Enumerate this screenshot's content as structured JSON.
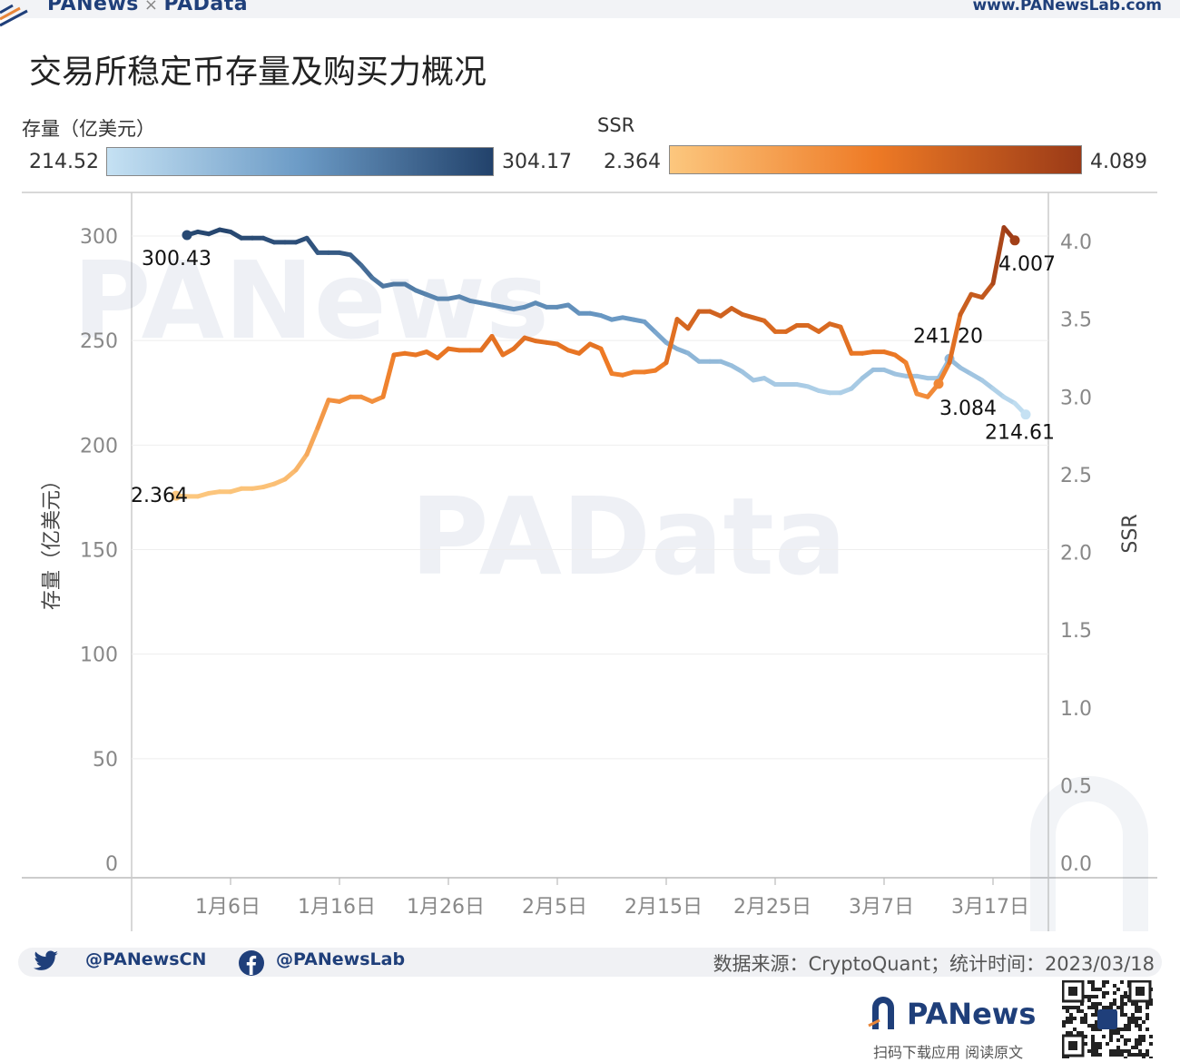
{
  "header": {
    "brand": "PANews",
    "brand_sep": "×",
    "brand2": "PAData",
    "url": "www.PANewsLab.com"
  },
  "title": "交易所稳定币存量及购买力概况",
  "legend": {
    "stock": {
      "title": "存量（亿美元）",
      "min": "214.52",
      "max": "304.17",
      "color_from": "#c5e1f3",
      "color_to": "#22426b"
    },
    "ssr": {
      "title": "SSR",
      "min": "2.364",
      "max": "4.089",
      "color_from": "#fcc77e",
      "color_to": "#9a3a17"
    }
  },
  "chart_data": {
    "type": "line",
    "x_ticks": [
      "1月6日",
      "1月16日",
      "1月26日",
      "2月5日",
      "2月15日",
      "2月25日",
      "3月7日",
      "3月17日"
    ],
    "y_left": {
      "label": "存量（亿美元）",
      "lim": [
        0,
        300
      ],
      "ticks": [
        "0",
        "50",
        "100",
        "150",
        "200",
        "250",
        "300"
      ]
    },
    "y_right": {
      "label": "SSR",
      "lim": [
        0,
        4.0
      ],
      "ticks": [
        "0.0",
        "0.5",
        "1.0",
        "1.5",
        "2.0",
        "2.5",
        "3.0",
        "3.5",
        "4.0"
      ]
    },
    "grid": true,
    "series": [
      {
        "axis": "left",
        "start_date": "1月2日",
        "values": [
          300.43,
          302,
          301,
          303,
          302,
          299,
          299,
          299,
          297,
          297,
          297,
          299,
          292,
          292,
          292,
          291,
          286,
          280,
          276,
          277,
          277,
          274,
          272,
          270,
          270,
          271,
          269,
          268,
          267,
          266,
          265,
          266,
          268,
          266,
          266,
          267,
          263,
          263,
          262,
          260,
          261,
          260,
          259,
          254,
          249,
          246,
          244,
          240,
          240,
          240,
          238,
          235,
          231,
          232,
          229,
          229,
          229,
          228,
          226,
          225,
          225,
          227,
          232,
          236,
          236,
          234,
          233,
          233,
          232,
          232,
          241.2,
          237,
          234,
          231,
          227,
          223,
          220,
          214.61
        ],
        "annotations": [
          {
            "index": 0,
            "text": "300.43"
          },
          {
            "index": 70,
            "text": "241.20"
          },
          {
            "index": 77,
            "text": "214.61"
          }
        ]
      },
      {
        "axis": "right",
        "start_date": "1月1日",
        "values": [
          2.364,
          2.36,
          2.36,
          2.38,
          2.39,
          2.39,
          2.41,
          2.41,
          2.42,
          2.44,
          2.47,
          2.53,
          2.63,
          2.8,
          2.98,
          2.97,
          3.0,
          3.0,
          2.97,
          3.0,
          3.27,
          3.28,
          3.27,
          3.29,
          3.25,
          3.31,
          3.3,
          3.3,
          3.3,
          3.39,
          3.27,
          3.31,
          3.38,
          3.36,
          3.35,
          3.34,
          3.3,
          3.28,
          3.34,
          3.31,
          3.15,
          3.14,
          3.16,
          3.16,
          3.17,
          3.22,
          3.5,
          3.44,
          3.55,
          3.55,
          3.52,
          3.57,
          3.53,
          3.51,
          3.49,
          3.42,
          3.42,
          3.46,
          3.46,
          3.42,
          3.47,
          3.45,
          3.28,
          3.28,
          3.29,
          3.29,
          3.27,
          3.22,
          3.02,
          3.0,
          3.084,
          3.22,
          3.53,
          3.66,
          3.64,
          3.73,
          4.09,
          4.007
        ],
        "annotations": [
          {
            "index": 0,
            "text": "2.364"
          },
          {
            "index": 70,
            "text": "3.084"
          },
          {
            "index": 77,
            "text": "4.007"
          }
        ]
      }
    ]
  },
  "footer": {
    "twitter": "@PANewsCN",
    "facebook": "@PANewsLab",
    "source": "数据来源：CryptoQuant；统计时间：2023/03/18",
    "logo": "PANews",
    "logo_sub": "扫码下载应用  阅读原文"
  }
}
